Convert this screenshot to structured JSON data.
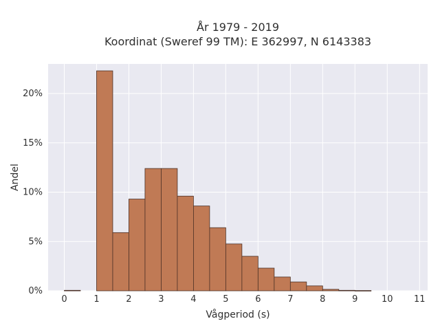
{
  "chart_data": {
    "type": "bar",
    "title_line1": "År 1979 - 2019",
    "title_line2": "Koordinat (Sweref 99 TM): E 362997, N 6143383",
    "xlabel": "Vågperiod (s)",
    "ylabel": "Andel",
    "x_ticks": [
      "0",
      "1",
      "2",
      "3",
      "4",
      "5",
      "6",
      "7",
      "8",
      "9",
      "10",
      "11"
    ],
    "y_ticks": [
      "0%",
      "5%",
      "10%",
      "15%",
      "20%"
    ],
    "ylim": [
      0,
      23
    ],
    "xlim": [
      -0.5,
      11.25
    ],
    "bin_width": 0.5,
    "bars": [
      {
        "x0": 0.0,
        "x1": 0.5,
        "value": 0.05
      },
      {
        "x0": 1.0,
        "x1": 1.5,
        "value": 22.3
      },
      {
        "x0": 1.5,
        "x1": 2.0,
        "value": 5.9
      },
      {
        "x0": 2.0,
        "x1": 2.5,
        "value": 9.3
      },
      {
        "x0": 2.5,
        "x1": 3.0,
        "value": 12.4
      },
      {
        "x0": 3.0,
        "x1": 3.5,
        "value": 12.4
      },
      {
        "x0": 3.5,
        "x1": 4.0,
        "value": 9.6
      },
      {
        "x0": 4.0,
        "x1": 4.5,
        "value": 8.6
      },
      {
        "x0": 4.5,
        "x1": 5.0,
        "value": 6.4
      },
      {
        "x0": 5.0,
        "x1": 5.5,
        "value": 4.75
      },
      {
        "x0": 5.5,
        "x1": 6.0,
        "value": 3.5
      },
      {
        "x0": 6.0,
        "x1": 6.5,
        "value": 2.3
      },
      {
        "x0": 6.5,
        "x1": 7.0,
        "value": 1.4
      },
      {
        "x0": 7.0,
        "x1": 7.5,
        "value": 0.9
      },
      {
        "x0": 7.5,
        "x1": 8.0,
        "value": 0.5
      },
      {
        "x0": 8.0,
        "x1": 8.5,
        "value": 0.15
      },
      {
        "x0": 8.5,
        "x1": 9.0,
        "value": 0.05
      },
      {
        "x0": 9.0,
        "x1": 9.5,
        "value": 0.03
      }
    ],
    "grid": true,
    "colors": {
      "bar_fill": "#c07a55",
      "bar_edge": "#4a3026",
      "plot_background": "#e9e9f1",
      "grid": "#ffffff"
    }
  }
}
